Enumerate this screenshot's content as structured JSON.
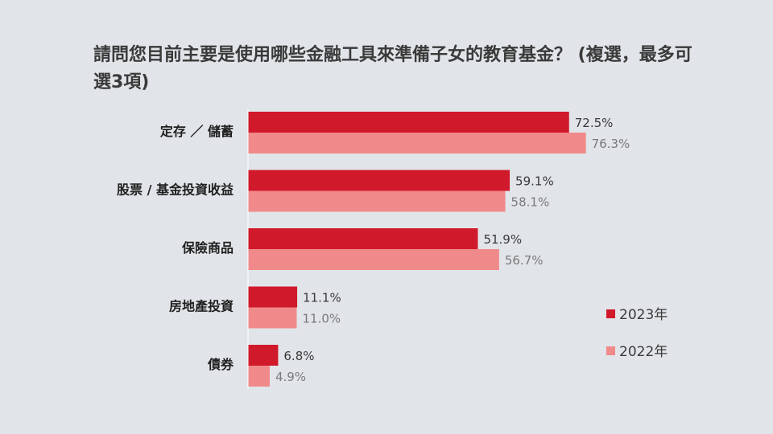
{
  "title": "請問您目前主要是使用哪些金融工具來準備子女的教育基金？ (複選，最多可選3項)",
  "chart_data": {
    "type": "bar",
    "orientation": "horizontal",
    "title": "請問您目前主要是使用哪些金融工具來準備子女的教育基金？ (複選，最多可選3項)",
    "categories": [
      "定存 ／ 儲蓄",
      "股票 / 基金投資收益",
      "保險商品",
      "房地產投資",
      "債券"
    ],
    "series": [
      {
        "name": "2023年",
        "values": [
          72.5,
          59.1,
          51.9,
          11.1,
          6.8
        ],
        "labels": [
          "72.5%",
          "59.1%",
          "51.9%",
          "11.1%",
          "6.8%"
        ],
        "color": "#d0192b",
        "label_color": "#3a3a3a"
      },
      {
        "name": "2022年",
        "values": [
          76.3,
          58.1,
          56.7,
          11.0,
          4.9
        ],
        "labels": [
          "76.3%",
          "58.1%",
          "56.7%",
          "11.0%",
          "4.9%"
        ],
        "color": "#f08a8a",
        "label_color": "#7a7a7a"
      }
    ],
    "xlim": [
      0,
      100
    ],
    "grid": false,
    "legend_position": "right"
  }
}
